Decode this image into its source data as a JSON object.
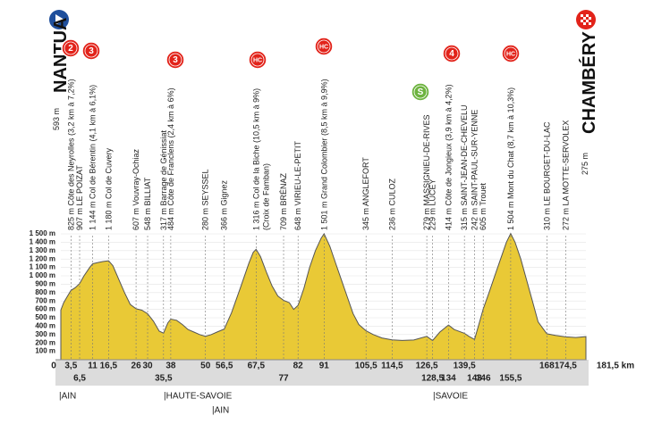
{
  "chart_data": {
    "type": "area",
    "start": "NANTUA",
    "finish": "CHAMBÉRY",
    "note": "(Croix de Famban)",
    "color": "#e9c936",
    "xlim": [
      0,
      181.5
    ],
    "ylim": [
      0,
      1500
    ],
    "x": [
      0,
      1,
      2,
      3.5,
      5,
      6.5,
      8,
      10,
      11,
      13,
      14.5,
      16.5,
      18,
      20,
      22,
      24,
      26,
      28,
      30,
      32,
      34,
      35.5,
      37,
      38,
      40,
      42,
      44,
      46,
      48,
      50,
      52,
      54,
      56.5,
      59,
      62,
      65,
      66.5,
      67.5,
      69,
      71,
      73,
      75,
      77,
      79,
      80.5,
      82,
      84,
      86,
      88,
      90,
      91,
      93,
      95,
      97,
      99,
      101,
      103,
      105.5,
      108,
      111,
      114.5,
      118,
      122,
      126.5,
      128.5,
      131,
      134,
      136,
      139.5,
      141,
      143,
      144.5,
      146,
      148,
      150,
      152,
      154,
      155.5,
      157,
      159,
      161,
      163,
      165,
      168,
      171,
      174.5,
      178,
      181.5
    ],
    "values": [
      593,
      680,
      740,
      825,
      860,
      907,
      1000,
      1100,
      1144,
      1160,
      1170,
      1180,
      1120,
      960,
      800,
      660,
      607,
      590,
      548,
      460,
      340,
      317,
      440,
      484,
      470,
      420,
      360,
      330,
      300,
      280,
      300,
      330,
      366,
      560,
      850,
      1150,
      1280,
      1316,
      1230,
      1050,
      880,
      760,
      709,
      680,
      600,
      648,
      850,
      1100,
      1300,
      1450,
      1501,
      1350,
      1150,
      950,
      750,
      550,
      420,
      345,
      300,
      260,
      236,
      230,
      235,
      279,
      229,
      330,
      414,
      360,
      315,
      280,
      242,
      420,
      605,
      800,
      1000,
      1200,
      1400,
      1504,
      1400,
      1200,
      950,
      700,
      450,
      310,
      290,
      272,
      265,
      275
    ],
    "yticks": [
      {
        "value": 100,
        "label": "100 m"
      },
      {
        "value": 200,
        "label": "200 m"
      },
      {
        "value": 300,
        "label": "300 m"
      },
      {
        "value": 400,
        "label": "400 m"
      },
      {
        "value": 500,
        "label": "500 m"
      },
      {
        "value": 600,
        "label": "600 m"
      },
      {
        "value": 700,
        "label": "700 m"
      },
      {
        "value": 800,
        "label": "800 m"
      },
      {
        "value": 900,
        "label": "900 m"
      },
      {
        "value": 1000,
        "label": "1 000 m"
      },
      {
        "value": 1100,
        "label": "1 100 m"
      },
      {
        "value": 1200,
        "label": "1 200 m"
      },
      {
        "value": 1300,
        "label": "1 300 m"
      },
      {
        "value": 1400,
        "label": "1 400 m"
      },
      {
        "value": 1500,
        "label": "1 500 m"
      }
    ],
    "xticks": [
      0,
      {
        "value": 3.5,
        "label": "3,5"
      },
      {
        "value": 6.5,
        "label": "6,5"
      },
      11,
      {
        "value": 16.5,
        "label": "16,5"
      },
      26,
      30,
      {
        "value": 35.5,
        "label": "35,5"
      },
      38,
      50,
      {
        "value": 56.5,
        "label": "56,5"
      },
      {
        "value": 67.5,
        "label": "67,5"
      },
      77,
      82,
      91,
      {
        "value": 105.5,
        "label": "105,5"
      },
      {
        "value": 114.5,
        "label": "114,5"
      },
      {
        "value": 126.5,
        "label": "126,5"
      },
      {
        "value": 128.5,
        "label": "128,5"
      },
      134,
      {
        "value": 139.5,
        "label": "139,5"
      },
      143,
      146,
      {
        "value": 155.5,
        "label": "155,5"
      },
      168,
      {
        "value": 174.5,
        "label": "174,5"
      },
      {
        "value": 181.5,
        "label": "181,5 km"
      }
    ],
    "waypoints": [
      "593 m",
      "825 m Côte des Neyrolles (3,2 km à 7,2%)",
      "907 m LE POIZAT",
      "1 144 m Col de Bérentin (4,1 km à 6,1%)",
      "1 180 m Col de Cuvery",
      "607 m Vouvray-Ochiaz",
      "548 m BILLIAT",
      "317 m Barrage de Génissiat",
      "484 m Côte de Franclens (2,4 km à 6%)",
      "280 m SEYSSEL",
      "366 m Gignez",
      "1 316 m Col de la Biche (10,5 km à 9%)",
      "709 m BRÉNAZ",
      "648 m VIRIEU-LE-PETIT",
      "1 501 m Grand Colombier (8,5 km à 9,9%)",
      "345 m ANGLEFORT",
      "236 m CULOZ",
      "279 m MASSIGNIEU-DE-RIVES",
      "229 m LUCEY",
      "414 m Côte de Jongieux (3,9 km à 4,2%)",
      "315 m SAINT-JEAN-DE-CHEVELU",
      "242 m SAINT-PAUL-SUR-YENNE",
      "605 m Trouet",
      "1 504 m Mont du Chat (8,7 km à 10,3%)",
      "310 m LE BOURGET-DU-LAC",
      "272 m LA MOTTE-SERVOLEX",
      "275 m"
    ],
    "badges": [
      {
        "text": "2",
        "color": "#e2231a"
      },
      {
        "text": "3",
        "color": "#e2231a"
      },
      {
        "text": "3",
        "color": "#e2231a"
      },
      {
        "text": "HC",
        "color": "#e2231a"
      },
      {
        "text": "HC",
        "color": "#e2231a"
      },
      {
        "text": "S",
        "color": "#6db33f"
      },
      {
        "text": "4",
        "color": "#e2231a"
      },
      {
        "text": "HC",
        "color": "#e2231a"
      }
    ],
    "regions": [
      "|AIN",
      "|HAUTE-SAVOIE",
      "|AIN",
      "|SAVOIE"
    ]
  }
}
